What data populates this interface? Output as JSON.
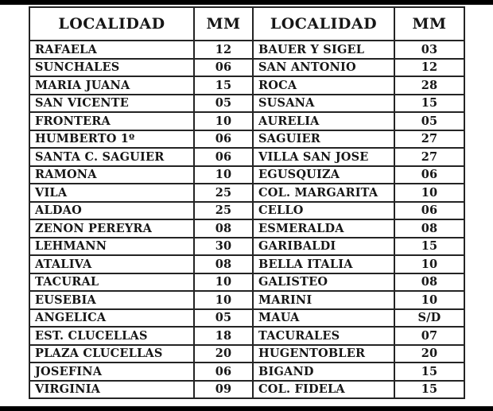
{
  "page": {
    "background_color": "#ffffff",
    "bar_color": "#000000",
    "text_color": "#161616",
    "grid_color": "#242424"
  },
  "table": {
    "columns": [
      "LOCALIDAD",
      "MM",
      "LOCALIDAD",
      "MM"
    ],
    "rows": [
      {
        "loc1": "RAFAELA",
        "mm1": "12",
        "loc2": "BAUER Y SIGEL",
        "mm2": "03"
      },
      {
        "loc1": "SUNCHALES",
        "mm1": "06",
        "loc2": "SAN ANTONIO",
        "mm2": "12"
      },
      {
        "loc1": "MARIA JUANA",
        "mm1": "15",
        "loc2": "ROCA",
        "mm2": "28"
      },
      {
        "loc1": "SAN VICENTE",
        "mm1": "05",
        "loc2": "SUSANA",
        "mm2": "15"
      },
      {
        "loc1": "FRONTERA",
        "mm1": "10",
        "loc2": "AURELIA",
        "mm2": "05"
      },
      {
        "loc1": "HUMBERTO 1º",
        "mm1": "06",
        "loc2": "SAGUIER",
        "mm2": "27"
      },
      {
        "loc1": "SANTA C. SAGUIER",
        "mm1": "06",
        "loc2": "VILLA SAN JOSE",
        "mm2": "27"
      },
      {
        "loc1": "RAMONA",
        "mm1": "10",
        "loc2": "EGUSQUIZA",
        "mm2": "06"
      },
      {
        "loc1": "VILA",
        "mm1": "25",
        "loc2": "COL. MARGARITA",
        "mm2": "10"
      },
      {
        "loc1": "ALDAO",
        "mm1": "25",
        "loc2": "CELLO",
        "mm2": "06"
      },
      {
        "loc1": "ZENON PEREYRA",
        "mm1": "08",
        "loc2": "ESMERALDA",
        "mm2": "08"
      },
      {
        "loc1": "LEHMANN",
        "mm1": "30",
        "loc2": "GARIBALDI",
        "mm2": "15"
      },
      {
        "loc1": "ATALIVA",
        "mm1": "08",
        "loc2": "BELLA ITALIA",
        "mm2": "10"
      },
      {
        "loc1": "TACURAL",
        "mm1": "10",
        "loc2": "GALISTEO",
        "mm2": "08"
      },
      {
        "loc1": "EUSEBIA",
        "mm1": "10",
        "loc2": "MARINI",
        "mm2": "10"
      },
      {
        "loc1": "ANGELICA",
        "mm1": "05",
        "loc2": "MAUA",
        "mm2": "S/D"
      },
      {
        "loc1": "EST. CLUCELLAS",
        "mm1": "18",
        "loc2": "TACURALES",
        "mm2": "07"
      },
      {
        "loc1": "PLAZA CLUCELLAS",
        "mm1": "20",
        "loc2": "HUGENTOBLER",
        "mm2": "20"
      },
      {
        "loc1": "JOSEFINA",
        "mm1": "06",
        "loc2": "BIGAND",
        "mm2": "15"
      },
      {
        "loc1": "VIRGINIA",
        "mm1": "09",
        "loc2": "COL. FIDELA",
        "mm2": "15"
      }
    ]
  }
}
